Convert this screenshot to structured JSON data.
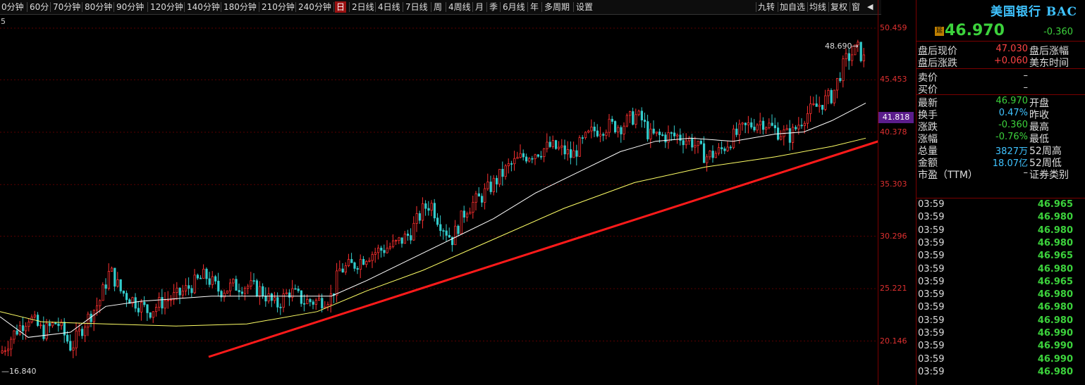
{
  "toolbar": {
    "periods": [
      "0分钟",
      "60分",
      "70分钟",
      "80分钟",
      "90分钟",
      "120分钟",
      "140分钟",
      "180分钟",
      "210分钟",
      "240分钟",
      "日",
      "2日线",
      "4日线",
      "7日线",
      "周",
      "4周线",
      "月",
      "季",
      "6月线",
      "年",
      "多周期",
      "设置"
    ],
    "active_period": "日",
    "right_buttons": [
      "九转",
      "加自选",
      "均线",
      "复权",
      "窗"
    ],
    "volume_icon": "speaker-icon"
  },
  "chart": {
    "corner_label": "5",
    "price_axis_labels": [
      "50.459",
      "45.453",
      "40.378",
      "35.303",
      "30.296",
      "25.221",
      "20.146"
    ],
    "current_price_tag": "41.818",
    "high_annotation": "48.690",
    "low_annotation": "16.840",
    "colors": {
      "up": "#ff3030",
      "down": "#33cccc",
      "ma_short": "#ffffff",
      "ma_long": "#ffff66",
      "trend_arrow": "#ff1a1a",
      "grid": "#5a0000",
      "axis_text": "#e03030"
    },
    "trend_arrow_icon": "trend-arrow-icon"
  },
  "chart_data": {
    "type": "candlestick",
    "title": "",
    "xlabel": "",
    "ylabel": "",
    "ylim": [
      16.84,
      50.459
    ],
    "y_ticks": [
      50.459,
      45.453,
      40.378,
      35.303,
      30.296,
      25.221,
      20.146
    ],
    "annotations": [
      {
        "label": "48.690",
        "value": 48.69
      },
      {
        "label": "16.840",
        "value": 16.84
      }
    ],
    "close_points": [
      [
        0,
        19
      ],
      [
        20,
        21
      ],
      [
        40,
        22.5
      ],
      [
        60,
        21
      ],
      [
        80,
        22
      ],
      [
        100,
        19.5
      ],
      [
        120,
        22
      ],
      [
        140,
        24
      ],
      [
        155,
        27
      ],
      [
        170,
        25
      ],
      [
        190,
        24
      ],
      [
        210,
        23
      ],
      [
        230,
        24
      ],
      [
        250,
        24.5
      ],
      [
        270,
        25.5
      ],
      [
        290,
        26.5
      ],
      [
        310,
        25
      ],
      [
        330,
        25.5
      ],
      [
        350,
        25.5
      ],
      [
        370,
        25
      ],
      [
        390,
        23.5
      ],
      [
        410,
        25
      ],
      [
        430,
        24
      ],
      [
        450,
        24
      ],
      [
        470,
        24.5
      ],
      [
        480,
        27
      ],
      [
        500,
        27.5
      ],
      [
        520,
        28.5
      ],
      [
        540,
        29
      ],
      [
        560,
        29.5
      ],
      [
        580,
        30.5
      ],
      [
        600,
        33
      ],
      [
        610,
        33.5
      ],
      [
        620,
        32
      ],
      [
        630,
        31
      ],
      [
        640,
        30
      ],
      [
        650,
        31.5
      ],
      [
        660,
        33
      ],
      [
        680,
        34
      ],
      [
        700,
        35.5
      ],
      [
        720,
        37
      ],
      [
        740,
        38
      ],
      [
        760,
        38.5
      ],
      [
        780,
        39
      ],
      [
        800,
        38.5
      ],
      [
        810,
        38
      ],
      [
        820,
        39
      ],
      [
        840,
        40.5
      ],
      [
        860,
        41
      ],
      [
        880,
        41
      ],
      [
        900,
        42
      ],
      [
        910,
        41.5
      ],
      [
        920,
        40
      ],
      [
        940,
        40
      ],
      [
        960,
        40
      ],
      [
        980,
        39.5
      ],
      [
        1000,
        38
      ],
      [
        1020,
        38.5
      ],
      [
        1040,
        40
      ],
      [
        1060,
        41
      ],
      [
        1080,
        41.5
      ],
      [
        1100,
        40.5
      ],
      [
        1120,
        40
      ],
      [
        1140,
        42
      ],
      [
        1160,
        43
      ],
      [
        1180,
        44
      ],
      [
        1190,
        46
      ],
      [
        1200,
        47.5
      ],
      [
        1215,
        48.5
      ],
      [
        1228,
        47
      ]
    ],
    "series": [
      {
        "values_note_free": true,
        "points": [
          [
            0,
            22.5
          ],
          [
            40,
            20.5
          ],
          [
            100,
            21
          ],
          [
            150,
            23.5
          ],
          [
            200,
            24
          ],
          [
            300,
            24.5
          ],
          [
            400,
            24.5
          ],
          [
            470,
            24.5
          ],
          [
            520,
            26
          ],
          [
            580,
            28
          ],
          [
            640,
            30
          ],
          [
            700,
            32
          ],
          [
            760,
            34.5
          ],
          [
            820,
            36.5
          ],
          [
            880,
            38.5
          ],
          [
            930,
            39.5
          ],
          [
            980,
            39.8
          ],
          [
            1040,
            39.5
          ],
          [
            1100,
            40.2
          ],
          [
            1140,
            40.4
          ],
          [
            1180,
            41.5
          ],
          [
            1228,
            43.2
          ]
        ]
      },
      {
        "points": [
          [
            0,
            23
          ],
          [
            60,
            22
          ],
          [
            150,
            21.8
          ],
          [
            250,
            21.6
          ],
          [
            350,
            21.8
          ],
          [
            450,
            23
          ],
          [
            520,
            25
          ],
          [
            600,
            27
          ],
          [
            700,
            30
          ],
          [
            800,
            33
          ],
          [
            900,
            35.5
          ],
          [
            1000,
            37
          ],
          [
            1100,
            38
          ],
          [
            1180,
            39
          ],
          [
            1228,
            39.8
          ]
        ]
      }
    ]
  },
  "panel": {
    "title": "美国银行 BAC",
    "delay_badge": "延",
    "last_price": "46.970",
    "change": "-0.360",
    "after_hours": [
      {
        "label": "盘后现价",
        "value": "47.030",
        "label2": "盘后涨幅"
      },
      {
        "label": "盘后涨跌",
        "value": "+0.060",
        "label2": "美东时间"
      }
    ],
    "quote": [
      {
        "label": "卖价",
        "value": "–"
      },
      {
        "label": "买价",
        "value": "–"
      }
    ],
    "stats": [
      {
        "label": "最新",
        "value": "46.970",
        "label2": "开盘",
        "color": "green"
      },
      {
        "label": "换手",
        "value": "0.47%",
        "label2": "昨收",
        "color": "cyan"
      },
      {
        "label": "涨跌",
        "value": "-0.360",
        "label2": "最高",
        "color": "green"
      },
      {
        "label": "涨幅",
        "value": "-0.76%",
        "label2": "最低",
        "color": "green"
      },
      {
        "label": "总量",
        "value": "3827万",
        "label2": "52周高",
        "color": "cyan"
      },
      {
        "label": "金额",
        "value": "18.07亿",
        "label2": "52周低",
        "color": "cyan"
      },
      {
        "label": "市盈（TTM）",
        "value": "–",
        "label2": "证券类别",
        "color": "white"
      }
    ],
    "ticks": [
      {
        "time": "03:59",
        "price": "46.965"
      },
      {
        "time": "03:59",
        "price": "46.980"
      },
      {
        "time": "03:59",
        "price": "46.980"
      },
      {
        "time": "03:59",
        "price": "46.980"
      },
      {
        "time": "03:59",
        "price": "46.965"
      },
      {
        "time": "03:59",
        "price": "46.980"
      },
      {
        "time": "03:59",
        "price": "46.965"
      },
      {
        "time": "03:59",
        "price": "46.980"
      },
      {
        "time": "03:59",
        "price": "46.980"
      },
      {
        "time": "03:59",
        "price": "46.980"
      },
      {
        "time": "03:59",
        "price": "46.990"
      },
      {
        "time": "03:59",
        "price": "46.990"
      },
      {
        "time": "03:59",
        "price": "46.990"
      },
      {
        "time": "03:59",
        "price": "46.980"
      }
    ]
  }
}
